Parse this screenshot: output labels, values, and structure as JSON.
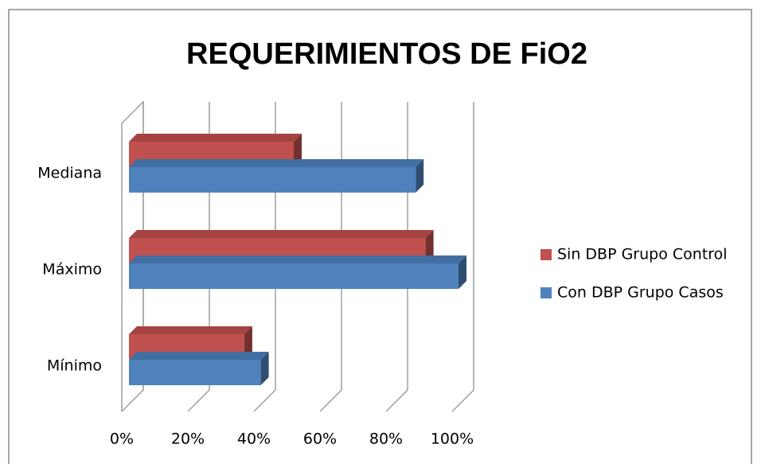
{
  "chart_data": {
    "type": "bar3d_horizontal",
    "title": "REQUERIMIENTOS DE FiO2",
    "categories": [
      "Mínimo",
      "Máximo",
      "Mediana"
    ],
    "series": [
      {
        "name": "Con DBP Grupo Casos",
        "color": "#4f81bd",
        "values": [
          40,
          100,
          87
        ]
      },
      {
        "name": "Sin DBP Grupo Control",
        "color": "#c0504d",
        "values": [
          35,
          90,
          50
        ]
      }
    ],
    "xlim": [
      0,
      100
    ],
    "xticks": [
      {
        "value": 0,
        "label": "0%"
      },
      {
        "value": 20,
        "label": "20%"
      },
      {
        "value": 40,
        "label": "40%"
      },
      {
        "value": 60,
        "label": "60%"
      },
      {
        "value": 80,
        "label": "80%"
      },
      {
        "value": 100,
        "label": "100%"
      }
    ],
    "grid": true,
    "legend": "right"
  }
}
